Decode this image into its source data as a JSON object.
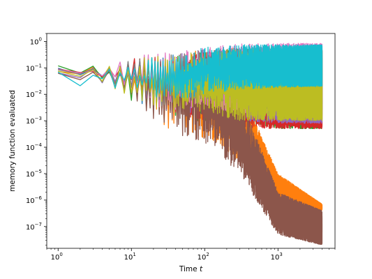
{
  "chart_data": {
    "type": "line",
    "title": "",
    "xlabel": "Time",
    "xlabel_var": "t",
    "ylabel": "memory function evaluated",
    "x_scale": "log",
    "y_scale": "log",
    "xlim": [
      0.7,
      6000
    ],
    "ylim": [
      1.5e-08,
      2.0
    ],
    "x_tick_labels": [
      {
        "value": 1,
        "base": "10",
        "exp": "0"
      },
      {
        "value": 10,
        "base": "10",
        "exp": "1"
      },
      {
        "value": 100,
        "base": "10",
        "exp": "2"
      },
      {
        "value": 1000,
        "base": "10",
        "exp": "3"
      }
    ],
    "y_tick_labels": [
      {
        "value": 1,
        "base": "10",
        "exp": "0"
      },
      {
        "value": 0.1,
        "base": "10",
        "exp": "−1"
      },
      {
        "value": 0.01,
        "base": "10",
        "exp": "−2"
      },
      {
        "value": 0.001,
        "base": "10",
        "exp": "−3"
      },
      {
        "value": 0.0001,
        "base": "10",
        "exp": "−4"
      },
      {
        "value": 1e-05,
        "base": "10",
        "exp": "−5"
      },
      {
        "value": 1e-06,
        "base": "10",
        "exp": "−6"
      },
      {
        "value": 1e-07,
        "base": "10",
        "exp": "−7"
      }
    ],
    "grid": false,
    "legend": false,
    "series": [
      {
        "color": "#1f77b4",
        "x": [
          1,
          2,
          5,
          10,
          30,
          100,
          300,
          1000,
          4000
        ],
        "y_low": [
          0.08,
          0.05,
          0.02,
          0.005,
          0.001,
          0.003,
          0.001,
          0.0008,
          0.0008
        ],
        "y_high": [
          0.1,
          0.1,
          0.12,
          0.2,
          0.3,
          0.5,
          0.55,
          0.55,
          0.55
        ]
      },
      {
        "color": "#ff7f0e",
        "x": [
          1,
          2,
          5,
          10,
          30,
          100,
          300,
          1000,
          4000
        ],
        "y_low": [
          0.05,
          0.04,
          0.03,
          0.005,
          0.0005,
          0.0002,
          3e-05,
          1e-06,
          4e-07
        ],
        "y_high": [
          0.08,
          0.1,
          0.12,
          0.2,
          0.3,
          0.5,
          0.02,
          1e-05,
          7e-07
        ]
      },
      {
        "color": "#2ca02c",
        "x": [
          1,
          2,
          5,
          10,
          30,
          100,
          300,
          1000,
          4000
        ],
        "y_low": [
          0.12,
          0.06,
          0.02,
          0.005,
          0.001,
          0.001,
          0.001,
          0.0005,
          0.0005
        ],
        "y_high": [
          0.12,
          0.15,
          0.1,
          0.2,
          0.3,
          0.5,
          0.55,
          0.55,
          0.55
        ]
      },
      {
        "color": "#d62728",
        "x": [
          1,
          2,
          5,
          10,
          30,
          100,
          300,
          1000,
          4000
        ],
        "y_low": [
          0.06,
          0.05,
          0.03,
          0.01,
          0.001,
          0.001,
          0.0005,
          0.0005,
          0.0005
        ],
        "y_high": [
          0.09,
          0.1,
          0.1,
          0.25,
          0.3,
          0.5,
          0.55,
          0.55,
          0.55
        ]
      },
      {
        "color": "#9467bd",
        "x": [
          1,
          2,
          5,
          10,
          30,
          100,
          300,
          1000,
          4000
        ],
        "y_low": [
          0.05,
          0.04,
          0.02,
          0.01,
          0.002,
          0.002,
          0.001,
          0.0008,
          0.0008
        ],
        "y_high": [
          0.08,
          0.1,
          0.1,
          0.2,
          0.3,
          0.5,
          0.55,
          0.55,
          0.55
        ]
      },
      {
        "color": "#8c564b",
        "x": [
          1,
          2,
          5,
          10,
          30,
          100,
          300,
          1000,
          4000
        ],
        "y_low": [
          0.04,
          0.03,
          0.02,
          0.005,
          0.0005,
          0.0001,
          1e-05,
          5e-08,
          2e-08
        ],
        "y_high": [
          0.08,
          0.1,
          0.1,
          0.2,
          0.3,
          0.5,
          0.01,
          2e-06,
          4e-07
        ]
      },
      {
        "color": "#e377c2",
        "x": [
          1,
          2,
          5,
          10,
          30,
          100,
          300,
          1000,
          4000
        ],
        "y_low": [
          0.07,
          0.05,
          0.02,
          0.01,
          0.002,
          0.003,
          0.002,
          0.002,
          0.002
        ],
        "y_high": [
          0.1,
          0.1,
          0.15,
          0.3,
          0.4,
          0.6,
          0.8,
          0.85,
          0.85
        ]
      },
      {
        "color": "#7f7f7f",
        "x": [
          1,
          2,
          5,
          10,
          30,
          100,
          300,
          1000,
          4000
        ],
        "y_low": [
          0.07,
          0.05,
          0.02,
          0.01,
          0.003,
          0.005,
          0.005,
          0.002,
          0.002
        ],
        "y_high": [
          0.09,
          0.1,
          0.1,
          0.2,
          0.3,
          0.5,
          0.55,
          0.55,
          0.55
        ]
      },
      {
        "color": "#bcbd22",
        "x": [
          1,
          2,
          5,
          10,
          30,
          100,
          300,
          1000,
          4000
        ],
        "y_low": [
          0.05,
          0.04,
          0.02,
          0.005,
          0.002,
          0.002,
          0.001,
          0.001,
          0.001
        ],
        "y_high": [
          0.08,
          0.1,
          0.12,
          0.25,
          0.3,
          0.5,
          0.55,
          0.55,
          0.55
        ]
      },
      {
        "color": "#17becf",
        "x": [
          1,
          2,
          5,
          10,
          30,
          100,
          300,
          1000,
          4000
        ],
        "y_low": [
          0.05,
          0.02,
          0.02,
          0.01,
          0.005,
          0.01,
          0.015,
          0.018,
          0.02
        ],
        "y_high": [
          0.09,
          0.1,
          0.12,
          0.2,
          0.3,
          0.6,
          0.75,
          0.75,
          0.75
        ]
      }
    ]
  }
}
